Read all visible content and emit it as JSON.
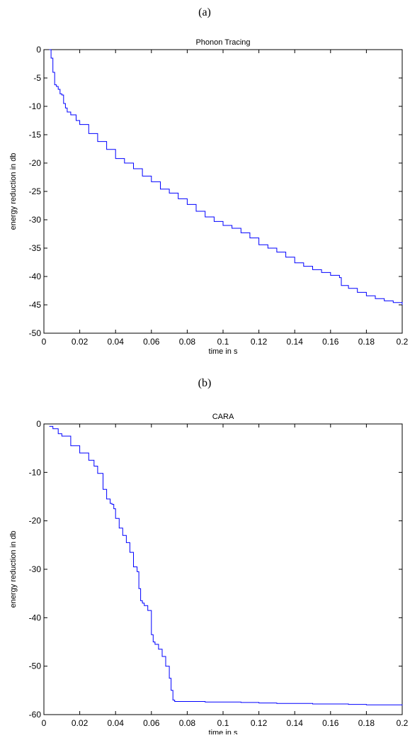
{
  "figure": {
    "panel_labels": [
      "(a)",
      "(b)"
    ]
  },
  "chart_data": [
    {
      "type": "line",
      "title": "Phonon Tracing",
      "xlabel": "time in s",
      "ylabel": "energy reduction in db",
      "xlim": [
        0,
        0.2
      ],
      "ylim": [
        -50,
        0
      ],
      "xticks": [
        0,
        0.02,
        0.04,
        0.06,
        0.08,
        0.1,
        0.12,
        0.14,
        0.16,
        0.18,
        0.2
      ],
      "xtick_labels": [
        "0",
        "0.02",
        "0.04",
        "0.06",
        "0.08",
        "0.1",
        "0.12",
        "0.14",
        "0.16",
        "0.18",
        "0.2"
      ],
      "yticks": [
        0,
        -5,
        -10,
        -15,
        -20,
        -25,
        -30,
        -35,
        -40,
        -45,
        -50
      ],
      "ytick_labels": [
        "0",
        "-5",
        "-10",
        "-15",
        "-20",
        "-25",
        "-30",
        "-35",
        "-40",
        "-45",
        "-50"
      ],
      "grid": false,
      "color": "#0000ff",
      "series": [
        {
          "x": [
            0.003,
            0.004,
            0.005,
            0.006,
            0.007,
            0.008,
            0.009,
            0.01,
            0.011,
            0.012,
            0.013,
            0.015,
            0.018,
            0.02,
            0.025,
            0.03,
            0.035,
            0.04,
            0.045,
            0.05,
            0.055,
            0.06,
            0.065,
            0.07,
            0.075,
            0.08,
            0.085,
            0.09,
            0.095,
            0.1,
            0.105,
            0.11,
            0.115,
            0.12,
            0.125,
            0.13,
            0.135,
            0.14,
            0.145,
            0.15,
            0.155,
            0.16,
            0.165,
            0.166,
            0.17,
            0.175,
            0.18,
            0.185,
            0.19,
            0.195,
            0.2
          ],
          "y": [
            0,
            -1.5,
            -4,
            -6.2,
            -6.5,
            -7,
            -7.8,
            -8,
            -9.5,
            -10.3,
            -11,
            -11.5,
            -12.5,
            -13.2,
            -14.8,
            -16.2,
            -17.6,
            -19.2,
            -20,
            -21,
            -22.3,
            -23.3,
            -24.6,
            -25.3,
            -26.3,
            -27.3,
            -28.5,
            -29.5,
            -30.3,
            -31,
            -31.5,
            -32.3,
            -33.2,
            -34.4,
            -35,
            -35.7,
            -36.6,
            -37.6,
            -38.2,
            -38.8,
            -39.3,
            -39.8,
            -40.2,
            -41.6,
            -42.1,
            -42.8,
            -43.4,
            -43.9,
            -44.3,
            -44.6,
            -45
          ]
        }
      ]
    },
    {
      "type": "line",
      "title": "CARA",
      "xlabel": "time in s",
      "ylabel": "energy reduction in db",
      "xlim": [
        0,
        0.2
      ],
      "ylim": [
        -60,
        0
      ],
      "xticks": [
        0,
        0.02,
        0.04,
        0.06,
        0.08,
        0.1,
        0.12,
        0.14,
        0.16,
        0.18,
        0.2
      ],
      "xtick_labels": [
        "0",
        "0.02",
        "0.04",
        "0.06",
        "0.08",
        "0.1",
        "0.12",
        "0.14",
        "0.16",
        "0.18",
        "0.2"
      ],
      "yticks": [
        0,
        -10,
        -20,
        -30,
        -40,
        -50,
        -60
      ],
      "ytick_labels": [
        "0",
        "-10",
        "-20",
        "-30",
        "-40",
        "-50",
        "-60"
      ],
      "grid": false,
      "color": "#0000ff",
      "series": [
        {
          "x": [
            0.003,
            0.005,
            0.008,
            0.01,
            0.015,
            0.02,
            0.025,
            0.028,
            0.03,
            0.033,
            0.035,
            0.037,
            0.038,
            0.039,
            0.04,
            0.042,
            0.044,
            0.046,
            0.048,
            0.05,
            0.051,
            0.052,
            0.053,
            0.054,
            0.055,
            0.056,
            0.058,
            0.06,
            0.061,
            0.062,
            0.064,
            0.066,
            0.068,
            0.07,
            0.071,
            0.072,
            0.073,
            0.075,
            0.08,
            0.09,
            0.1,
            0.11,
            0.12,
            0.13,
            0.14,
            0.15,
            0.16,
            0.17,
            0.18,
            0.19,
            0.2
          ],
          "y": [
            -0.5,
            -1,
            -2,
            -2.5,
            -4.5,
            -6,
            -7.5,
            -8.7,
            -10.2,
            -13.5,
            -15.5,
            -16.4,
            -16.6,
            -17.5,
            -19.5,
            -21.5,
            -23,
            -24.5,
            -26.5,
            -29.5,
            -29.5,
            -30.5,
            -34,
            -36.5,
            -37,
            -37.5,
            -38.5,
            -43.5,
            -45,
            -45.5,
            -46.5,
            -48,
            -50,
            -52.5,
            -55,
            -57,
            -57.3,
            -57.3,
            -57.3,
            -57.4,
            -57.4,
            -57.5,
            -57.6,
            -57.7,
            -57.7,
            -57.8,
            -57.8,
            -57.9,
            -58,
            -58,
            -58.1
          ]
        }
      ]
    }
  ]
}
